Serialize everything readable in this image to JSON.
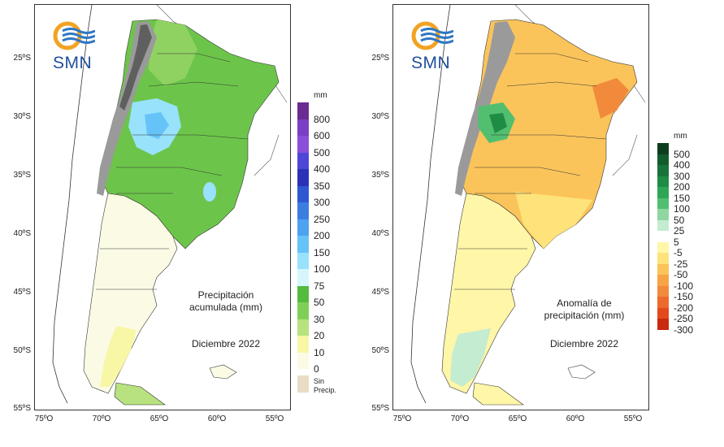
{
  "organization": "SMN",
  "axes": {
    "lat_labels": [
      "25ºS",
      "30ºS",
      "35ºS",
      "40ºS",
      "45ºS",
      "50ºS",
      "55ºS"
    ],
    "lon_labels": [
      "75ºO",
      "70ºO",
      "65ºO",
      "60ºO",
      "55ºO"
    ]
  },
  "left_map": {
    "caption_line1": "Precipitación",
    "caption_line2": "acumulada (mm)",
    "period": "Diciembre 2022",
    "legend_unit": "mm",
    "legend": [
      {
        "label": "800",
        "color": "#6a2c91"
      },
      {
        "label": "600",
        "color": "#7b3fc4"
      },
      {
        "label": "500",
        "color": "#8a4fd8"
      },
      {
        "label": "400",
        "color": "#4e46d6"
      },
      {
        "label": "350",
        "color": "#2b32b8"
      },
      {
        "label": "300",
        "color": "#2f57d2"
      },
      {
        "label": "250",
        "color": "#3c7ee0"
      },
      {
        "label": "200",
        "color": "#4ea2f0"
      },
      {
        "label": "150",
        "color": "#66c3f8"
      },
      {
        "label": "100",
        "color": "#98e2fc"
      },
      {
        "label": "75",
        "color": "#d6f6fd"
      },
      {
        "label": "50",
        "color": "#55bb3f"
      },
      {
        "label": "30",
        "color": "#7fcf57"
      },
      {
        "label": "20",
        "color": "#b7e27f"
      },
      {
        "label": "10",
        "color": "#f7f7a6"
      },
      {
        "label": "0",
        "color": "#fbfbe5"
      }
    ],
    "no_precip_line1": "Sin",
    "no_precip_line2": "Precip.",
    "no_precip_color": "#e9dcc4"
  },
  "right_map": {
    "caption_line1": "Anomalía de",
    "caption_line2": "precipitación (mm)",
    "period": "Diciembre 2022",
    "legend_unit": "mm",
    "legend": [
      {
        "label": "500",
        "color": "#0b3d1e"
      },
      {
        "label": "400",
        "color": "#115c2c"
      },
      {
        "label": "300",
        "color": "#17733a"
      },
      {
        "label": "200",
        "color": "#1f8c46"
      },
      {
        "label": "150",
        "color": "#2ea655"
      },
      {
        "label": "100",
        "color": "#52bf70"
      },
      {
        "label": "50",
        "color": "#8fd6a0"
      },
      {
        "label": "25",
        "color": "#c4ecd0"
      },
      {
        "label": "5",
        "color": "#ffffff"
      },
      {
        "label": "-5",
        "color": "#fff6a8"
      },
      {
        "label": "-25",
        "color": "#fde37a"
      },
      {
        "label": "-50",
        "color": "#fbc45a"
      },
      {
        "label": "-100",
        "color": "#f7a447"
      },
      {
        "label": "-150",
        "color": "#f28a3c"
      },
      {
        "label": "-200",
        "color": "#ec6a2c"
      },
      {
        "label": "-250",
        "color": "#e24a1d"
      },
      {
        "label": "-300",
        "color": "#c8290f"
      }
    ]
  }
}
